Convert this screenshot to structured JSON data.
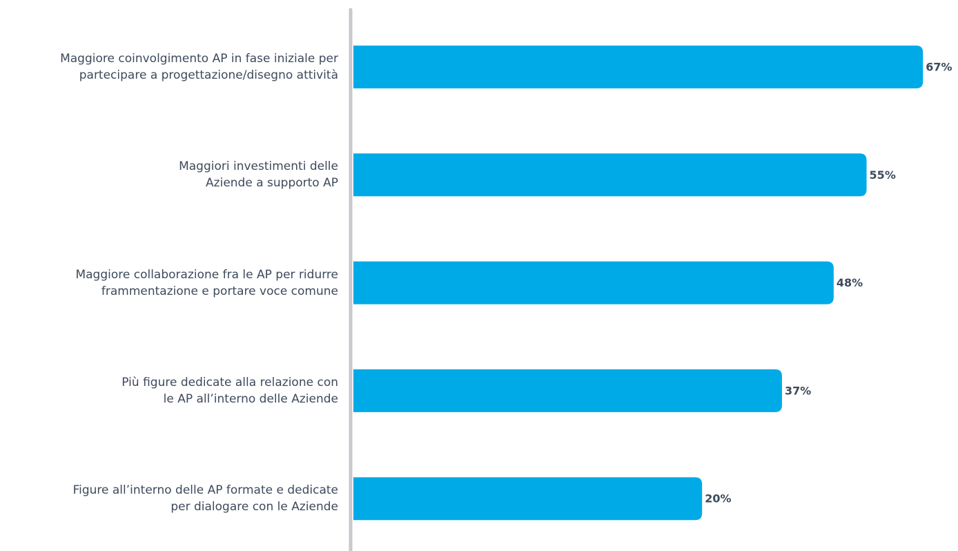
{
  "chart_data": {
    "type": "bar",
    "orientation": "horizontal",
    "color": "#00aae7",
    "categories": [
      "Maggiore coinvolgimento AP in fase iniziale per\npartecipare a progettazione/disegno attività",
      "Maggiori investimenti delle\nAziende a supporto AP",
      "Maggiore collaborazione fra le AP per ridurre\nframmentazione e portare voce comune",
      "Più figure dedicate alla relazione con\nle AP all’interno delle Aziende",
      "Figure all’interno delle AP formate e dedicate\nper dialogare con le Aziende"
    ],
    "values": [
      67,
      55,
      48,
      37,
      20
    ],
    "value_labels": [
      "67%",
      "55%",
      "48%",
      "37%",
      "20%"
    ]
  }
}
